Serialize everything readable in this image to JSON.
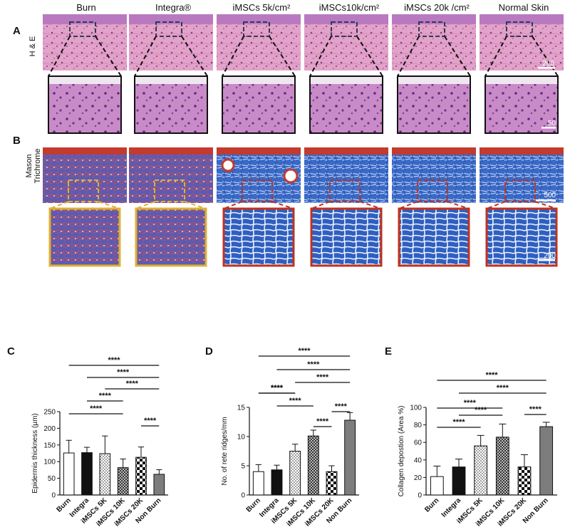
{
  "columns": [
    "Burn",
    "Integra®",
    "iMSCs 5k/cm²",
    "iMSCs10k/cm²",
    "iMSCs 20k /cm²",
    "Normal Skin"
  ],
  "panels": {
    "a_letter": "A",
    "b_letter": "B",
    "he_label": "H & E",
    "mason_label": [
      "Mason",
      "Trichrome"
    ],
    "he_scale_main": "200",
    "he_scale_zoom": "50",
    "mt_scale_main": "500",
    "mt_scale_zoom": "200"
  },
  "colors": {
    "he_pink": "#e3a2c8",
    "he_purple": "#b06cb8",
    "mt_blue": "#3a6ac8",
    "mt_red": "#c43a2c",
    "box_dark": "#2b3d4f",
    "box_yellow": "#e0b030",
    "box_red": "#c0321f"
  },
  "chart_data": [
    {
      "panel": "C",
      "type": "bar",
      "categories": [
        "Burn",
        "Integra",
        "iMSCs 5K",
        "iMSCs 10K",
        "iMSCs 20K",
        "Non Burn"
      ],
      "values": [
        126,
        127,
        124,
        82,
        113,
        62
      ],
      "errors": [
        38,
        16,
        53,
        26,
        31,
        14
      ],
      "fills": [
        "white",
        "black",
        "dots",
        "checker-small",
        "checker-large",
        "gray"
      ],
      "ylabel": "Epidermis thickness (µm)",
      "ylim": [
        0,
        250
      ],
      "yticks": [
        0,
        50,
        100,
        150,
        200,
        250
      ],
      "significance": [
        {
          "from": 0,
          "to": 5,
          "label": "****"
        },
        {
          "from": 1,
          "to": 5,
          "label": "****"
        },
        {
          "from": 2,
          "to": 5,
          "label": "****"
        },
        {
          "from": 1,
          "to": 3,
          "label": "****"
        },
        {
          "from": 0,
          "to": 3,
          "label": "****"
        },
        {
          "from": 4,
          "to": 5,
          "label": "****"
        }
      ]
    },
    {
      "panel": "D",
      "type": "bar",
      "categories": [
        "Burn",
        "Integra",
        "iMSCs 5K",
        "iMSCs 10K",
        "iMSCs 20K",
        "Non Burn"
      ],
      "values": [
        4.0,
        4.3,
        7.5,
        10.1,
        4.0,
        12.8
      ],
      "errors": [
        1.2,
        0.8,
        1.2,
        1.0,
        1.0,
        1.3
      ],
      "fills": [
        "white",
        "black",
        "dots",
        "checker-small",
        "checker-large",
        "gray"
      ],
      "ylabel": "No. of rete ridges/mm",
      "ylim": [
        0,
        15
      ],
      "yticks": [
        0,
        5,
        10,
        15
      ],
      "significance": [
        {
          "from": 0,
          "to": 5,
          "label": "****"
        },
        {
          "from": 1,
          "to": 5,
          "label": "****"
        },
        {
          "from": 2,
          "to": 5,
          "label": "****"
        },
        {
          "from": 0,
          "to": 2,
          "label": "****"
        },
        {
          "from": 1,
          "to": 3,
          "label": "****"
        },
        {
          "from": 0,
          "to": 2,
          "label": "****"
        },
        {
          "from": 3,
          "to": 4,
          "label": "****"
        },
        {
          "from": 4,
          "to": 5,
          "label": "****"
        }
      ]
    },
    {
      "panel": "E",
      "type": "bar",
      "categories": [
        "Burn",
        "Integra",
        "iMSCs 5K",
        "iMSCs 10K",
        "iMSCs 20K",
        "Non Burn"
      ],
      "values": [
        21,
        32,
        56,
        66,
        32,
        78
      ],
      "errors": [
        12,
        9,
        12,
        15,
        14,
        5
      ],
      "fills": [
        "white",
        "black",
        "dots",
        "checker-small",
        "checker-large",
        "gray"
      ],
      "ylabel": "Collagen depostion (Area %)",
      "ylim": [
        0,
        100
      ],
      "yticks": [
        0,
        20,
        40,
        60,
        80,
        100
      ],
      "significance": [
        {
          "from": 0,
          "to": 5,
          "label": "****"
        },
        {
          "from": 1,
          "to": 5,
          "label": "****"
        },
        {
          "from": 0,
          "to": 3,
          "label": "****"
        },
        {
          "from": 1,
          "to": 3,
          "label": "****"
        },
        {
          "from": 0,
          "to": 2,
          "label": "****"
        },
        {
          "from": 4,
          "to": 5,
          "label": "****"
        }
      ]
    }
  ]
}
